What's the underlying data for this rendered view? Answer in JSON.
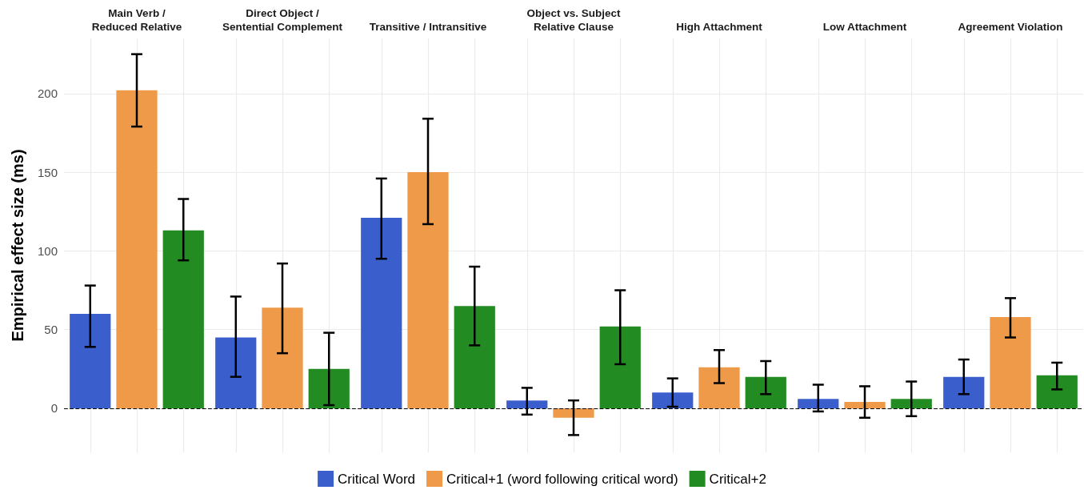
{
  "chart_data": {
    "type": "bar",
    "ylabel": "Empirical effect size (ms)",
    "categories": [
      "Main Verb /\nReduced Relative",
      "Direct Object /\nSentential Complement",
      "Transitive / Intransitive",
      "Object vs. Subject\nRelative Clause",
      "High Attachment",
      "Low Attachment",
      "Agreement Violation"
    ],
    "ylim": [
      -28,
      235
    ],
    "yticks": [
      0,
      50,
      100,
      150,
      200
    ],
    "grid": true,
    "legend": "bottom",
    "ref_lines": [
      {
        "axis": "y",
        "value": 0,
        "color": "#000000",
        "line_style": "dashed"
      }
    ],
    "series": [
      {
        "name": "Critical Word",
        "color": "#3a5fcd",
        "values": [
          60,
          45,
          121,
          5,
          10,
          6,
          20
        ],
        "errors": [
          [
            39,
            78
          ],
          [
            20,
            71
          ],
          [
            95,
            146
          ],
          [
            -4,
            13
          ],
          [
            1,
            19
          ],
          [
            -2,
            15
          ],
          [
            9,
            31
          ]
        ]
      },
      {
        "name": "Critical+1 (word following critical word)",
        "color": "#ee9a49",
        "values": [
          202,
          64,
          150,
          -6,
          26,
          4,
          58
        ],
        "errors": [
          [
            179,
            225
          ],
          [
            35,
            92
          ],
          [
            117,
            184
          ],
          [
            -17,
            5
          ],
          [
            16,
            37
          ],
          [
            -6,
            14
          ],
          [
            45,
            70
          ]
        ]
      },
      {
        "name": "Critical+2",
        "color": "#228b22",
        "values": [
          113,
          25,
          65,
          52,
          20,
          6,
          21
        ],
        "errors": [
          [
            94,
            133
          ],
          [
            2,
            48
          ],
          [
            40,
            90
          ],
          [
            28,
            75
          ],
          [
            9,
            30
          ],
          [
            -5,
            17
          ],
          [
            12,
            29
          ]
        ]
      }
    ]
  }
}
